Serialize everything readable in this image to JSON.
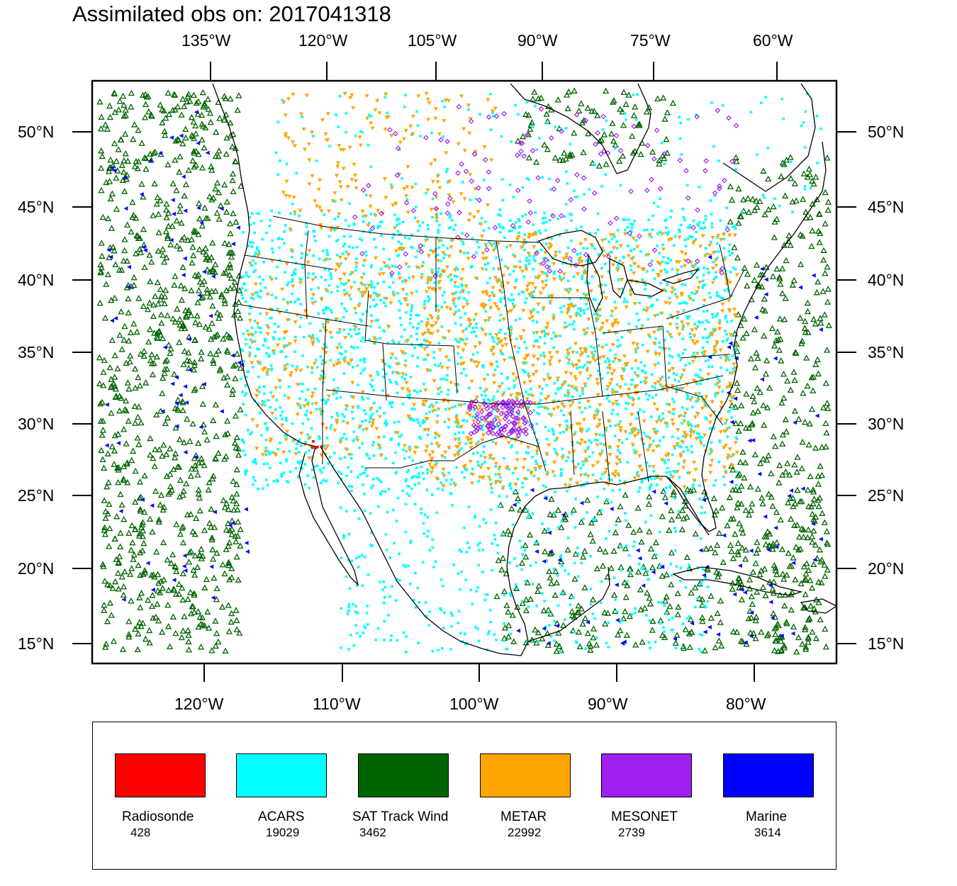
{
  "title": "Assimilated obs on: 2017041318",
  "axes": {
    "top_lon_labels": [
      "135°W",
      "120°W",
      "105°W",
      "90°W",
      "75°W",
      "60°W"
    ],
    "bottom_lon_labels": [
      "120°W",
      "110°W",
      "100°W",
      "90°W",
      "80°W"
    ],
    "lat_labels": [
      "50°N",
      "45°N",
      "40°N",
      "35°N",
      "30°N",
      "25°N",
      "20°N",
      "15°N"
    ]
  },
  "legend": [
    {
      "name": "Radiosonde",
      "count": "428",
      "color": "#ff0000"
    },
    {
      "name": "ACARS",
      "count": "19029",
      "color": "#00ffff"
    },
    {
      "name": "SAT Track Wind",
      "count": "3462",
      "color": "#006400"
    },
    {
      "name": "METAR",
      "count": "22992",
      "color": "#ffa500"
    },
    {
      "name": "MESONET",
      "count": "2739",
      "color": "#a020f0"
    },
    {
      "name": "Marine",
      "count": "3614",
      "color": "#0000ff"
    }
  ],
  "colors": {
    "frame": "#000000",
    "coastline": "#000000",
    "background": "#ffffff"
  }
}
